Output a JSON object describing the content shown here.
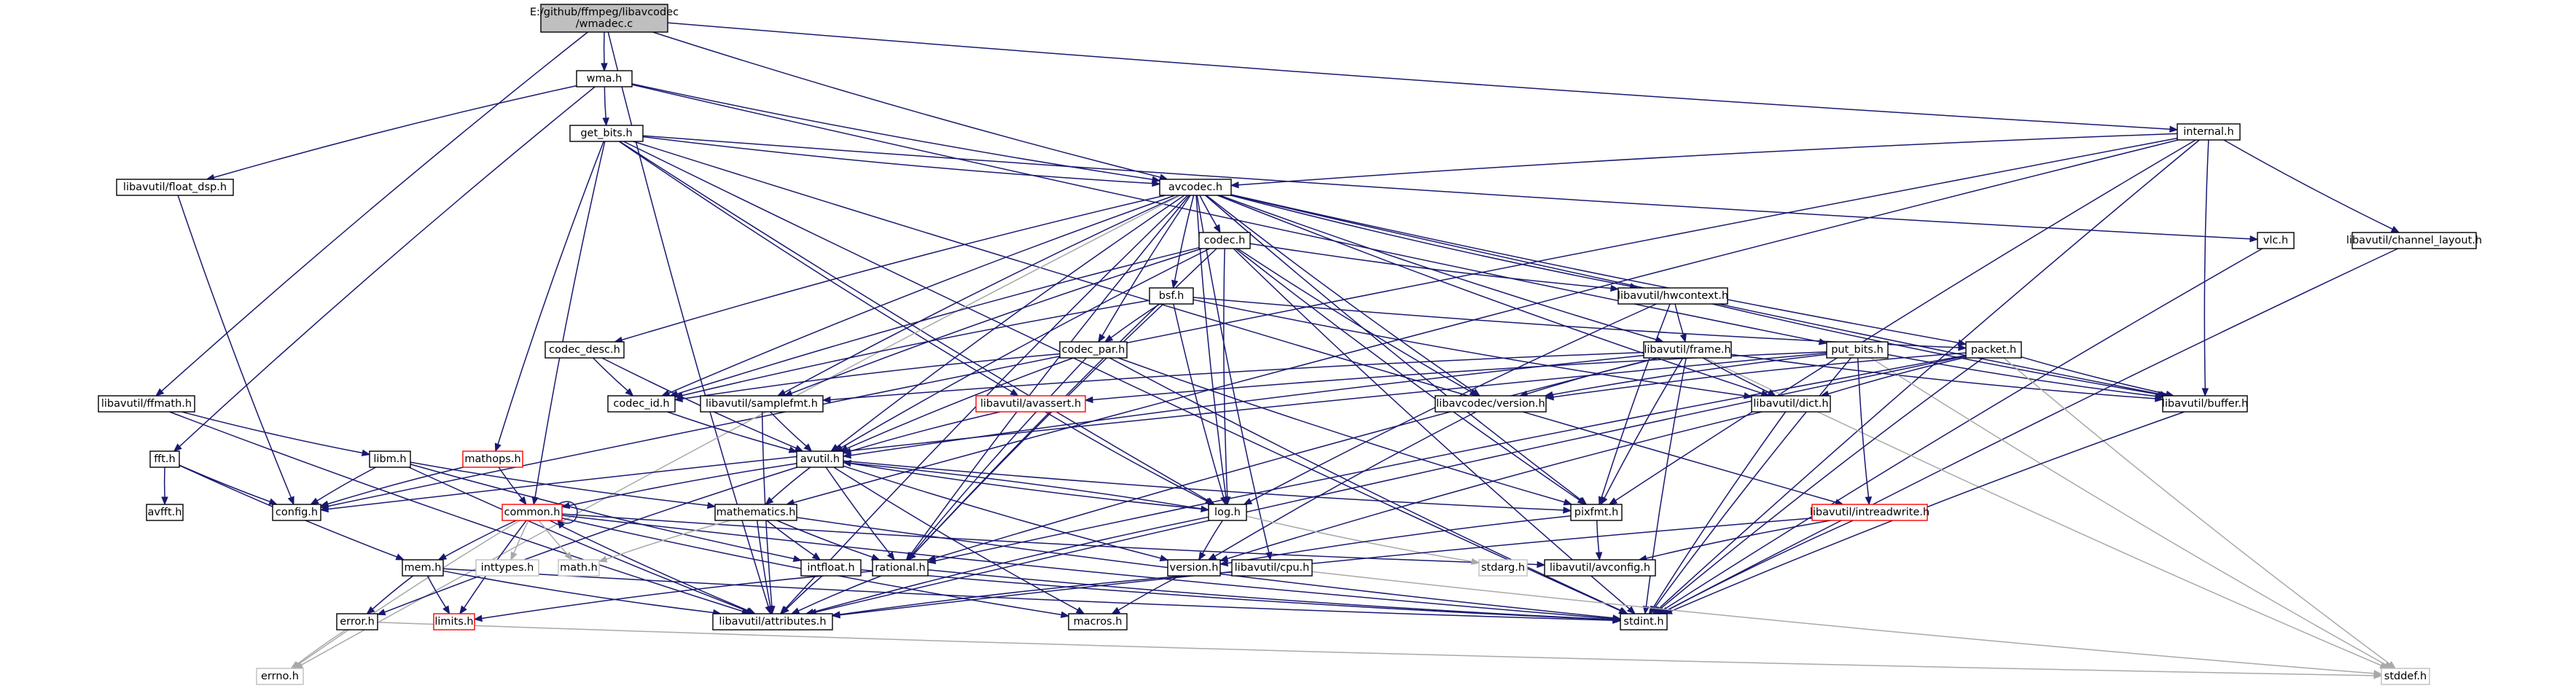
{
  "graph": {
    "root": "wmadec",
    "nodes": [
      {
        "id": "wmadec",
        "lines": [
          "E:/github/ffmpeg/libavcodec",
          "/wmadec.c"
        ],
        "style": "root"
      },
      {
        "id": "wma",
        "lines": [
          "wma.h"
        ],
        "style": "normal"
      },
      {
        "id": "get_bits",
        "lines": [
          "get_bits.h"
        ],
        "style": "normal"
      },
      {
        "id": "internal",
        "lines": [
          "internal.h"
        ],
        "style": "normal"
      },
      {
        "id": "float_dsp",
        "lines": [
          "libavutil/float_dsp.h"
        ],
        "style": "normal"
      },
      {
        "id": "avcodec",
        "lines": [
          "avcodec.h"
        ],
        "style": "normal"
      },
      {
        "id": "vlc",
        "lines": [
          "vlc.h"
        ],
        "style": "normal"
      },
      {
        "id": "channel_layout",
        "lines": [
          "libavutil/channel_layout.h"
        ],
        "style": "normal"
      },
      {
        "id": "codec",
        "lines": [
          "codec.h"
        ],
        "style": "normal"
      },
      {
        "id": "bsf",
        "lines": [
          "bsf.h"
        ],
        "style": "normal"
      },
      {
        "id": "hwcontext",
        "lines": [
          "libavutil/hwcontext.h"
        ],
        "style": "normal"
      },
      {
        "id": "codec_desc",
        "lines": [
          "codec_desc.h"
        ],
        "style": "normal"
      },
      {
        "id": "codec_par",
        "lines": [
          "codec_par.h"
        ],
        "style": "normal"
      },
      {
        "id": "frame",
        "lines": [
          "libavutil/frame.h"
        ],
        "style": "normal"
      },
      {
        "id": "put_bits",
        "lines": [
          "put_bits.h"
        ],
        "style": "normal"
      },
      {
        "id": "packet",
        "lines": [
          "packet.h"
        ],
        "style": "normal"
      },
      {
        "id": "ffmath",
        "lines": [
          "libavutil/ffmath.h"
        ],
        "style": "normal"
      },
      {
        "id": "codec_id",
        "lines": [
          "codec_id.h"
        ],
        "style": "normal"
      },
      {
        "id": "samplefmt",
        "lines": [
          "libavutil/samplefmt.h"
        ],
        "style": "normal"
      },
      {
        "id": "avassert",
        "lines": [
          "libavutil/avassert.h"
        ],
        "style": "red"
      },
      {
        "id": "lavc_version",
        "lines": [
          "libavcodec/version.h"
        ],
        "style": "normal"
      },
      {
        "id": "dict",
        "lines": [
          "libavutil/dict.h"
        ],
        "style": "normal"
      },
      {
        "id": "buffer",
        "lines": [
          "libavutil/buffer.h"
        ],
        "style": "normal"
      },
      {
        "id": "fft",
        "lines": [
          "fft.h"
        ],
        "style": "normal"
      },
      {
        "id": "libm",
        "lines": [
          "libm.h"
        ],
        "style": "normal"
      },
      {
        "id": "mathops",
        "lines": [
          "mathops.h"
        ],
        "style": "red"
      },
      {
        "id": "avutil",
        "lines": [
          "avutil.h"
        ],
        "style": "normal"
      },
      {
        "id": "avfft",
        "lines": [
          "avfft.h"
        ],
        "style": "normal"
      },
      {
        "id": "config",
        "lines": [
          "config.h"
        ],
        "style": "normal"
      },
      {
        "id": "common",
        "lines": [
          "common.h"
        ],
        "style": "red"
      },
      {
        "id": "mathematics",
        "lines": [
          "mathematics.h"
        ],
        "style": "normal"
      },
      {
        "id": "log",
        "lines": [
          "log.h"
        ],
        "style": "normal"
      },
      {
        "id": "pixfmt",
        "lines": [
          "pixfmt.h"
        ],
        "style": "normal"
      },
      {
        "id": "intreadwrite",
        "lines": [
          "libavutil/intreadwrite.h"
        ],
        "style": "red"
      },
      {
        "id": "mem",
        "lines": [
          "mem.h"
        ],
        "style": "normal"
      },
      {
        "id": "inttypes",
        "lines": [
          "inttypes.h"
        ],
        "style": "gray"
      },
      {
        "id": "math",
        "lines": [
          "math.h"
        ],
        "style": "gray"
      },
      {
        "id": "intfloat",
        "lines": [
          "intfloat.h"
        ],
        "style": "normal"
      },
      {
        "id": "rational",
        "lines": [
          "rational.h"
        ],
        "style": "normal"
      },
      {
        "id": "version",
        "lines": [
          "version.h"
        ],
        "style": "normal"
      },
      {
        "id": "cpu",
        "lines": [
          "libavutil/cpu.h"
        ],
        "style": "normal"
      },
      {
        "id": "stdarg",
        "lines": [
          "stdarg.h"
        ],
        "style": "gray"
      },
      {
        "id": "avconfig",
        "lines": [
          "libavutil/avconfig.h"
        ],
        "style": "normal"
      },
      {
        "id": "error",
        "lines": [
          "error.h"
        ],
        "style": "normal"
      },
      {
        "id": "limits",
        "lines": [
          "limits.h"
        ],
        "style": "red"
      },
      {
        "id": "attributes",
        "lines": [
          "libavutil/attributes.h"
        ],
        "style": "normal"
      },
      {
        "id": "macros",
        "lines": [
          "macros.h"
        ],
        "style": "normal"
      },
      {
        "id": "stdint",
        "lines": [
          "stdint.h"
        ],
        "style": "normal"
      },
      {
        "id": "errno",
        "lines": [
          "errno.h"
        ],
        "style": "gray"
      },
      {
        "id": "stddef",
        "lines": [
          "stddef.h"
        ],
        "style": "gray"
      }
    ],
    "edges": [
      [
        "wmadec",
        "wma"
      ],
      [
        "wmadec",
        "avcodec"
      ],
      [
        "wmadec",
        "internal"
      ],
      [
        "wmadec",
        "ffmath"
      ],
      [
        "wmadec",
        "attributes"
      ],
      [
        "wma",
        "get_bits"
      ],
      [
        "wma",
        "avcodec"
      ],
      [
        "wma",
        "float_dsp"
      ],
      [
        "wma",
        "fft"
      ],
      [
        "wma",
        "put_bits"
      ],
      [
        "get_bits",
        "avcodec"
      ],
      [
        "get_bits",
        "vlc"
      ],
      [
        "get_bits",
        "avassert"
      ],
      [
        "get_bits",
        "mathops"
      ],
      [
        "get_bits",
        "log"
      ],
      [
        "get_bits",
        "intreadwrite"
      ],
      [
        "get_bits",
        "common"
      ],
      [
        "get_bits",
        "stdint"
      ],
      [
        "internal",
        "avcodec"
      ],
      [
        "internal",
        "channel_layout"
      ],
      [
        "internal",
        "buffer"
      ],
      [
        "internal",
        "pixfmt"
      ],
      [
        "internal",
        "config"
      ],
      [
        "internal",
        "mathematics"
      ],
      [
        "internal",
        "stdint"
      ],
      [
        "float_dsp",
        "config"
      ],
      [
        "avcodec",
        "codec"
      ],
      [
        "avcodec",
        "bsf"
      ],
      [
        "avcodec",
        "hwcontext"
      ],
      [
        "avcodec",
        "codec_desc"
      ],
      [
        "avcodec",
        "codec_par"
      ],
      [
        "avcodec",
        "frame"
      ],
      [
        "avcodec",
        "packet"
      ],
      [
        "avcodec",
        "codec_id"
      ],
      [
        "avcodec",
        "samplefmt"
      ],
      [
        "avcodec",
        "lavc_version"
      ],
      [
        "avcodec",
        "dict"
      ],
      [
        "avcodec",
        "buffer"
      ],
      [
        "avcodec",
        "avutil"
      ],
      [
        "avcodec",
        "log"
      ],
      [
        "avcodec",
        "pixfmt"
      ],
      [
        "avcodec",
        "rational"
      ],
      [
        "avcodec",
        "attributes"
      ],
      [
        "avcodec",
        "errno"
      ],
      [
        "avcodec",
        "cpu"
      ],
      [
        "vlc",
        "stdint"
      ],
      [
        "channel_layout",
        "stdint"
      ],
      [
        "codec",
        "codec_id"
      ],
      [
        "codec",
        "samplefmt"
      ],
      [
        "codec",
        "hwcontext"
      ],
      [
        "codec",
        "lavc_version"
      ],
      [
        "codec",
        "avutil"
      ],
      [
        "codec",
        "log"
      ],
      [
        "codec",
        "pixfmt"
      ],
      [
        "codec",
        "rational"
      ],
      [
        "codec",
        "stdint"
      ],
      [
        "bsf",
        "codec_id"
      ],
      [
        "bsf",
        "codec_par"
      ],
      [
        "bsf",
        "packet"
      ],
      [
        "bsf",
        "dict"
      ],
      [
        "bsf",
        "log"
      ],
      [
        "bsf",
        "rational"
      ],
      [
        "hwcontext",
        "frame"
      ],
      [
        "hwcontext",
        "buffer"
      ],
      [
        "hwcontext",
        "log"
      ],
      [
        "hwcontext",
        "pixfmt"
      ],
      [
        "codec_desc",
        "codec_id"
      ],
      [
        "codec_desc",
        "avutil"
      ],
      [
        "codec_par",
        "codec_id"
      ],
      [
        "codec_par",
        "avutil"
      ],
      [
        "codec_par",
        "pixfmt"
      ],
      [
        "codec_par",
        "rational"
      ],
      [
        "codec_par",
        "stdint"
      ],
      [
        "frame",
        "avutil"
      ],
      [
        "frame",
        "buffer"
      ],
      [
        "frame",
        "dict"
      ],
      [
        "frame",
        "rational"
      ],
      [
        "frame",
        "samplefmt"
      ],
      [
        "frame",
        "pixfmt"
      ],
      [
        "frame",
        "lavc_version"
      ],
      [
        "frame",
        "stdint"
      ],
      [
        "frame",
        "stddef"
      ],
      [
        "put_bits",
        "config"
      ],
      [
        "put_bits",
        "avassert"
      ],
      [
        "put_bits",
        "intreadwrite"
      ],
      [
        "put_bits",
        "lavc_version"
      ],
      [
        "put_bits",
        "stdint"
      ],
      [
        "put_bits",
        "stddef"
      ],
      [
        "put_bits",
        "buffer"
      ],
      [
        "packet",
        "buffer"
      ],
      [
        "packet",
        "dict"
      ],
      [
        "packet",
        "lavc_version"
      ],
      [
        "packet",
        "rational"
      ],
      [
        "packet",
        "attributes"
      ],
      [
        "packet",
        "stdint"
      ],
      [
        "packet",
        "stddef"
      ],
      [
        "ffmath",
        "libm"
      ],
      [
        "ffmath",
        "attributes"
      ],
      [
        "codec_id",
        "avutil"
      ],
      [
        "samplefmt",
        "avutil"
      ],
      [
        "samplefmt",
        "attributes"
      ],
      [
        "avassert",
        "avutil"
      ],
      [
        "avassert",
        "log"
      ],
      [
        "lavc_version",
        "version"
      ],
      [
        "dict",
        "stdint"
      ],
      [
        "dict",
        "version"
      ],
      [
        "buffer",
        "stdint"
      ],
      [
        "fft",
        "config"
      ],
      [
        "fft",
        "avfft"
      ],
      [
        "fft",
        "mem"
      ],
      [
        "libm",
        "config"
      ],
      [
        "libm",
        "attributes"
      ],
      [
        "libm",
        "intfloat"
      ],
      [
        "libm",
        "mathematics"
      ],
      [
        "mathops",
        "config"
      ],
      [
        "mathops",
        "common"
      ],
      [
        "avutil",
        "common"
      ],
      [
        "avutil",
        "error"
      ],
      [
        "avutil",
        "version"
      ],
      [
        "avutil",
        "macros"
      ],
      [
        "avutil",
        "mathematics"
      ],
      [
        "avutil",
        "rational"
      ],
      [
        "avutil",
        "log"
      ],
      [
        "avutil",
        "pixfmt"
      ],
      [
        "common",
        "common"
      ],
      [
        "common",
        "errno"
      ],
      [
        "common",
        "inttypes"
      ],
      [
        "common",
        "limits"
      ],
      [
        "common",
        "math"
      ],
      [
        "common",
        "stdint"
      ],
      [
        "common",
        "attributes"
      ],
      [
        "common",
        "macros"
      ],
      [
        "common",
        "avconfig"
      ],
      [
        "common",
        "mem"
      ],
      [
        "mathematics",
        "math"
      ],
      [
        "mathematics",
        "intfloat"
      ],
      [
        "mathematics",
        "rational"
      ],
      [
        "mathematics",
        "attributes"
      ],
      [
        "mathematics",
        "stdint"
      ],
      [
        "log",
        "stdarg"
      ],
      [
        "log",
        "attributes"
      ],
      [
        "log",
        "version"
      ],
      [
        "log",
        "avutil"
      ],
      [
        "pixfmt",
        "version"
      ],
      [
        "pixfmt",
        "avconfig"
      ],
      [
        "intreadwrite",
        "avconfig"
      ],
      [
        "intreadwrite",
        "attributes"
      ],
      [
        "intreadwrite",
        "stdint"
      ],
      [
        "mem",
        "error"
      ],
      [
        "mem",
        "limits"
      ],
      [
        "mem",
        "attributes"
      ],
      [
        "mem",
        "stdint"
      ],
      [
        "intfloat",
        "attributes"
      ],
      [
        "intfloat",
        "stdint"
      ],
      [
        "rational",
        "attributes"
      ],
      [
        "rational",
        "limits"
      ],
      [
        "rational",
        "stdint"
      ],
      [
        "version",
        "macros"
      ],
      [
        "cpu",
        "stddef"
      ],
      [
        "cpu",
        "attributes"
      ],
      [
        "error",
        "errno"
      ],
      [
        "error",
        "stddef"
      ]
    ]
  }
}
